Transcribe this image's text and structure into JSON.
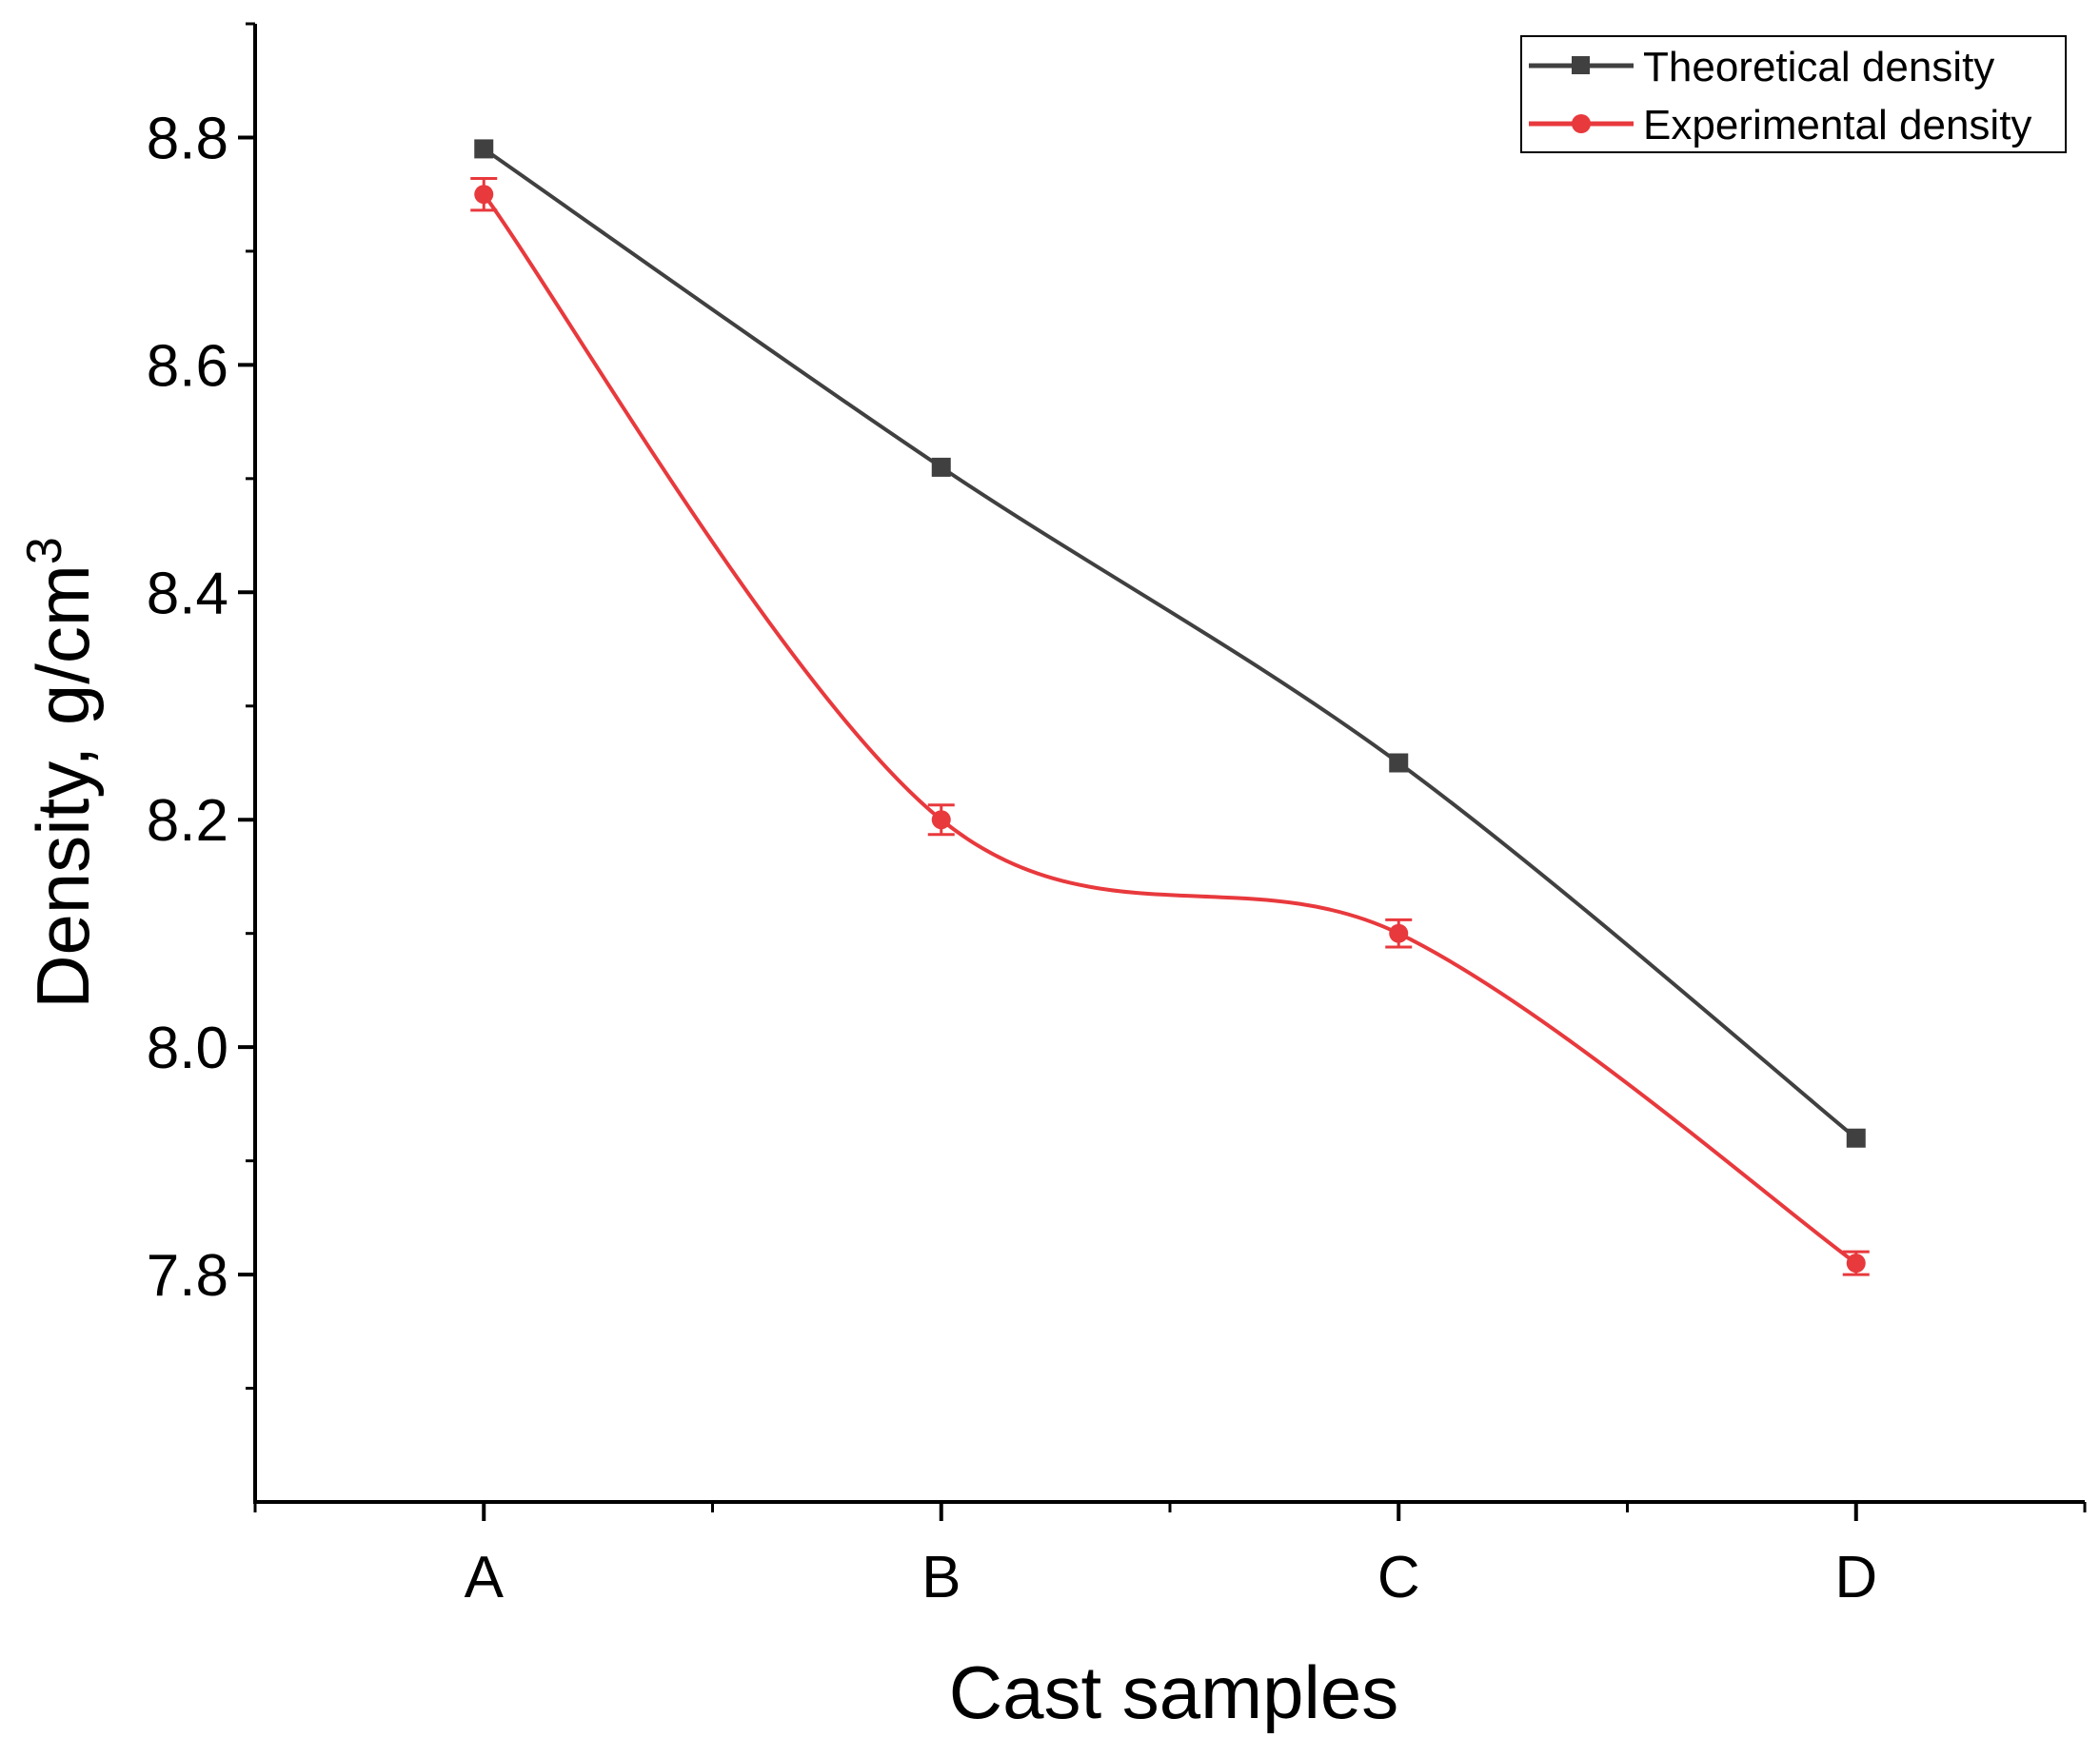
{
  "chart_data": {
    "type": "line",
    "title": "",
    "xlabel": "Cast samples",
    "ylabel": "Density, g/cm",
    "ylabel_superscript": "3",
    "categories": [
      "A",
      "B",
      "C",
      "D"
    ],
    "ylim": [
      7.6,
      8.9
    ],
    "yticks": [
      7.8,
      8.0,
      8.2,
      8.4,
      8.6,
      8.8
    ],
    "ytick_labels": [
      "7.8",
      "8.0",
      "8.2",
      "8.4",
      "8.6",
      "8.8"
    ],
    "grid": false,
    "legend_position": "top-right",
    "series": [
      {
        "name": "Theoretical density",
        "color": "#404040",
        "marker": "square",
        "values": [
          8.79,
          8.51,
          8.25,
          7.92
        ]
      },
      {
        "name": "Experimental density",
        "color": "#e8393d",
        "marker": "circle",
        "values": [
          8.75,
          8.2,
          8.1,
          7.81
        ],
        "errors": [
          0.014,
          0.013,
          0.012,
          0.01
        ]
      }
    ]
  }
}
